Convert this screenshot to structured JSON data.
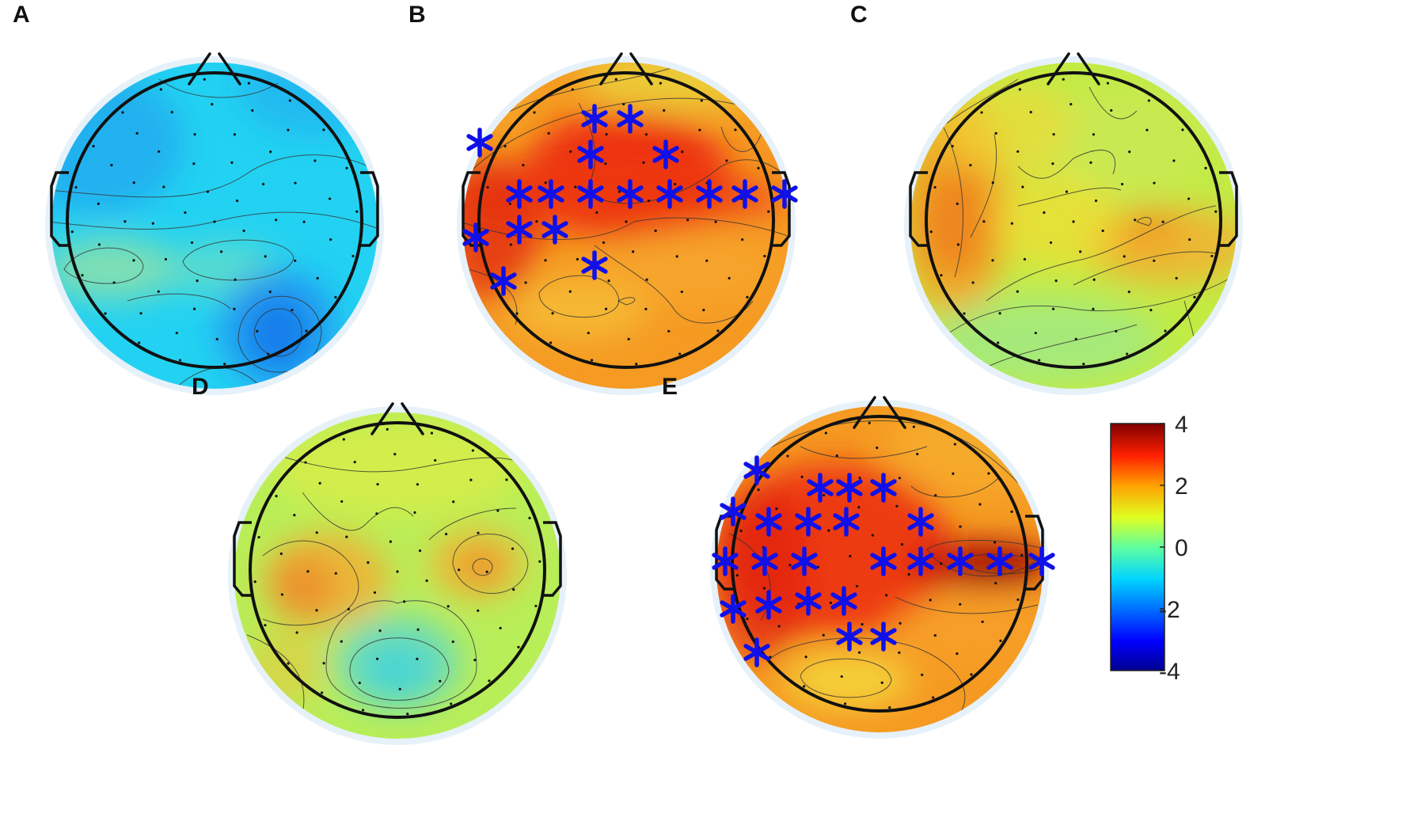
{
  "panels": [
    {
      "letter": "A",
      "center": [
        271,
        280
      ],
      "base": "#23d2f2",
      "blobs": [
        {
          "x": -150,
          "y": -100,
          "rx": 110,
          "ry": 90,
          "color": "#1fa6ee",
          "op": 0.75
        },
        {
          "x": 130,
          "y": -170,
          "rx": 100,
          "ry": 60,
          "color": "#1fa6ee",
          "op": 0.55
        },
        {
          "x": -130,
          "y": 60,
          "rx": 85,
          "ry": 40,
          "color": "#8fe0a8",
          "op": 0.85
        },
        {
          "x": 10,
          "y": 60,
          "rx": 70,
          "ry": 35,
          "color": "#6de0c0",
          "op": 0.7
        },
        {
          "x": 80,
          "y": 135,
          "rx": 75,
          "ry": 75,
          "color": "#1f8ff0",
          "op": 0.8
        },
        {
          "x": 80,
          "y": 140,
          "rx": 35,
          "ry": 45,
          "color": "#1570e8",
          "op": 0.8
        }
      ],
      "contours": [
        "M-210,-40 C-100,-30 -20,-20 40,-60 C90,-95 170,-90 210,-60",
        "M-210,0 C-120,10 -60,15 0,0 C60,-15 130,-20 210,10",
        "M-190,60 C-170,25 -100,25 -90,55 C-90,85 -170,85 -190,60 Z",
        "M-40,50 C-20,15 90,15 100,45 C95,80 -30,85 -40,50 Z",
        "M30,150 C30,80 130,75 135,140 C130,205 40,205 30,150 Z",
        "M50,140 C55,100 110,100 110,140 C110,180 55,180 50,140 Z",
        "M-70,-180 C-30,-150 40,-150 80,-175",
        "M-110,100 C-60,85 0,90 20,110",
        "M-60,220 C-20,180 20,170 60,210"
      ],
      "stars": []
    },
    {
      "letter": "B",
      "center": [
        791,
        280
      ],
      "base": "#f59a22",
      "blobs": [
        {
          "x": 0,
          "y": -60,
          "rx": 130,
          "ry": 80,
          "color": "#ec2010",
          "op": 0.85
        },
        {
          "x": -20,
          "y": -30,
          "rx": 220,
          "ry": 45,
          "color": "#ee3a12",
          "op": 0.7
        },
        {
          "x": -170,
          "y": 10,
          "rx": 60,
          "ry": 90,
          "color": "#e42a10",
          "op": 0.8
        },
        {
          "x": -60,
          "y": 110,
          "rx": 90,
          "ry": 40,
          "color": "#f5c238",
          "op": 0.75
        },
        {
          "x": 60,
          "y": -180,
          "rx": 120,
          "ry": 40,
          "color": "#e8e040",
          "op": 0.7
        },
        {
          "x": -180,
          "y": -170,
          "rx": 60,
          "ry": 40,
          "color": "#f5c238",
          "op": 0.5
        },
        {
          "x": 80,
          "y": 60,
          "rx": 110,
          "ry": 50,
          "color": "#f7a82e",
          "op": 0.7
        }
      ],
      "contours": [
        "M-200,-60 C-140,-120 -60,-140 0,-150 C60,-160 120,-160 200,-130",
        "M-180,-120 C-110,-170 -20,-170 60,-195",
        "M-60,-150 C-40,-110 -30,-80 -50,-40 C-20,-10 60,-20 120,-70 C160,-90 190,-70 210,-50",
        "M-210,0 C-120,30 -40,30 10,0 C60,-10 140,-5 210,20",
        "M-110,90 C-90,60 -20,60 -10,95 C0,130 -110,130 -110,90 Z",
        "M-40,30 C0,60 40,80 60,110 C80,140 140,130 160,100",
        "M-10,100 C10,90 20,100 0,105 Z",
        "M120,-120 C130,-80 160,-80 170,-110",
        "M-200,60 C-160,70 -130,90 -140,130"
      ],
      "stars": [
        [
          -40,
          -130
        ],
        [
          5,
          -130
        ],
        [
          -45,
          -85
        ],
        [
          50,
          -85
        ],
        [
          -185,
          -100
        ],
        [
          -135,
          -35
        ],
        [
          -95,
          -35
        ],
        [
          -45,
          -35
        ],
        [
          5,
          -35
        ],
        [
          55,
          -35
        ],
        [
          105,
          -35
        ],
        [
          150,
          -35
        ],
        [
          200,
          -35
        ],
        [
          -190,
          20
        ],
        [
          -135,
          10
        ],
        [
          -90,
          10
        ],
        [
          -40,
          55
        ],
        [
          -155,
          75
        ]
      ]
    },
    {
      "letter": "C",
      "center": [
        1356,
        280
      ],
      "base": "#c2ec44",
      "blobs": [
        {
          "x": -150,
          "y": -20,
          "rx": 70,
          "ry": 140,
          "color": "#f6a424",
          "op": 0.85
        },
        {
          "x": -150,
          "y": 0,
          "rx": 45,
          "ry": 70,
          "color": "#ef6a1c",
          "op": 0.6
        },
        {
          "x": 120,
          "y": 30,
          "rx": 110,
          "ry": 50,
          "color": "#f6ad30",
          "op": 0.8
        },
        {
          "x": 90,
          "y": 10,
          "rx": 50,
          "ry": 25,
          "color": "#f28e20",
          "op": 0.6
        },
        {
          "x": -40,
          "y": 150,
          "rx": 150,
          "ry": 55,
          "color": "#9ce88c",
          "op": 0.75
        },
        {
          "x": 60,
          "y": -100,
          "rx": 110,
          "ry": 70,
          "color": "#cde85a",
          "op": 0.6
        },
        {
          "x": -20,
          "y": 0,
          "rx": 80,
          "ry": 60,
          "color": "#f2dd35",
          "op": 0.7
        },
        {
          "x": -80,
          "y": -120,
          "rx": 80,
          "ry": 60,
          "color": "#f3d735",
          "op": 0.6
        }
      ],
      "contours": [
        "M-200,-90 C-150,-140 -100,-160 -70,-180",
        "M-170,-130 C-140,-80 -130,0 -150,70",
        "M-100,-110 C-90,-60 -110,-20 -130,20",
        "M-70,-70 C-40,-40 -20,-60 0,-80 C40,-100 60,-90 50,-60",
        "M-70,-20 C-20,-30 30,-50 60,-40",
        "M-110,100 C-70,70 -40,60 0,50 C60,40 120,-10 180,-20",
        "M0,80 C40,60 120,30 180,40",
        "M-170,150 C-120,110 -60,100 0,110 C60,120 150,100 200,70",
        "M-140,200 C-80,160 20,150 80,130",
        "M140,100 C150,140 160,160 150,190",
        "M80,0 C90,-10 105,-5 95,5 Z",
        "M20,-170 C40,-130 60,-120 80,-140"
      ],
      "stars": []
    },
    {
      "letter": "D",
      "center": [
        502,
        722
      ],
      "base": "#b8ee58",
      "blobs": [
        {
          "x": -90,
          "y": 10,
          "rx": 80,
          "ry": 60,
          "color": "#f6aa30",
          "op": 0.8
        },
        {
          "x": -120,
          "y": 20,
          "rx": 40,
          "ry": 40,
          "color": "#ef7a22",
          "op": 0.6
        },
        {
          "x": 100,
          "y": -10,
          "rx": 60,
          "ry": 45,
          "color": "#f6b030",
          "op": 0.8
        },
        {
          "x": 105,
          "y": -5,
          "rx": 25,
          "ry": 18,
          "color": "#ea6a1c",
          "op": 0.7
        },
        {
          "x": 0,
          "y": 115,
          "rx": 80,
          "ry": 60,
          "color": "#5fd8cc",
          "op": 0.8
        },
        {
          "x": 0,
          "y": 125,
          "rx": 45,
          "ry": 35,
          "color": "#38d2e0",
          "op": 0.7
        },
        {
          "x": 0,
          "y": -130,
          "rx": 160,
          "ry": 60,
          "color": "#e2ec42",
          "op": 0.65
        },
        {
          "x": -140,
          "y": 120,
          "rx": 50,
          "ry": 50,
          "color": "#f0c038",
          "op": 0.5
        }
      ],
      "contours": [
        "M-170,-20 C-120,-60 -60,-30 -50,10 C-40,60 -120,80 -170,60",
        "M70,-10 C70,-60 160,-60 165,-10 C160,40 80,40 70,-10 Z",
        "M95,-5 C95,-20 120,-20 120,-5 C118,8 98,8 95,-5 Z",
        "M-60,125 C-60,70 60,70 65,125 C60,175 -60,175 -60,125 Z",
        "M-90,120 C-90,40 -20,30 0,40 C30,30 100,40 100,120 C100,190 -90,190 -90,120",
        "M-160,-150 C-100,-130 -40,-120 20,-130 C80,-140 140,-160 190,-120",
        "M-120,-100 C-90,-60 -60,-40 -40,-60 C-20,-80 0,-90 20,-70",
        "M40,-40 C60,-60 100,-80 150,-80",
        "M-190,80 C-140,100 -110,130 -120,180"
      ],
      "stars": []
    },
    {
      "letter": "E",
      "center": [
        1111,
        714
      ],
      "base": "#f59a22",
      "blobs": [
        {
          "x": -60,
          "y": -20,
          "rx": 150,
          "ry": 110,
          "color": "#ec2a10",
          "op": 0.85
        },
        {
          "x": -150,
          "y": 10,
          "rx": 60,
          "ry": 110,
          "color": "#e02010",
          "op": 0.7
        },
        {
          "x": 130,
          "y": 0,
          "rx": 90,
          "ry": 30,
          "color": "#b80e08",
          "op": 0.85
        },
        {
          "x": 150,
          "y": 0,
          "rx": 55,
          "ry": 18,
          "color": "#8e0404",
          "op": 0.8
        },
        {
          "x": -40,
          "y": 145,
          "rx": 80,
          "ry": 35,
          "color": "#f4da3c",
          "op": 0.85
        },
        {
          "x": 120,
          "y": -150,
          "rx": 110,
          "ry": 60,
          "color": "#f7b030",
          "op": 0.7
        },
        {
          "x": 120,
          "y": 80,
          "rx": 100,
          "ry": 45,
          "color": "#f7a02a",
          "op": 0.7
        }
      ],
      "contours": [
        "M-180,-120 C-120,-170 -40,-190 40,-180 C110,-170 170,-120 210,-60",
        "M-100,-150 C-60,-130 0,-130 60,-150",
        "M60,-20 C90,-40 180,-30 210,-20 C180,25 90,25 60,-20",
        "M100,-5 C120,-20 190,-15 210,0 C190,15 120,15 100,-5",
        "M-100,140 C-90,110 10,110 15,145 C10,175 -90,175 -100,140 Z",
        "M-140,120 C-110,90 0,80 60,110 C100,130 120,160 100,190",
        "M20,40 C60,60 120,70 200,50",
        "M-190,-40 C-150,-20 -120,20 -150,70",
        "M40,-100 C60,-80 120,-80 150,-110"
      ],
      "stars": [
        [
          -75,
          -98
        ],
        [
          -38,
          -98
        ],
        [
          5,
          -98
        ],
        [
          -155,
          -120
        ],
        [
          -185,
          -68
        ],
        [
          -140,
          -55
        ],
        [
          -90,
          -55
        ],
        [
          -42,
          -55
        ],
        [
          52,
          -55
        ],
        [
          -195,
          -5
        ],
        [
          -145,
          -5
        ],
        [
          -95,
          -5
        ],
        [
          5,
          -5
        ],
        [
          52,
          -5
        ],
        [
          102,
          -5
        ],
        [
          152,
          -5
        ],
        [
          205,
          -5
        ],
        [
          -185,
          55
        ],
        [
          -140,
          50
        ],
        [
          -90,
          45
        ],
        [
          -45,
          45
        ],
        [
          -38,
          90
        ],
        [
          5,
          90
        ],
        [
          -155,
          110
        ]
      ]
    }
  ],
  "colorbar": {
    "colormap": "jet",
    "ticks": [
      "4",
      "2",
      "0",
      "-2",
      "-4"
    ],
    "range": [
      -4,
      4
    ]
  },
  "colors": {
    "star": "#1010e8",
    "outline": "#111111",
    "contour": "#333333",
    "halo": "#e6f1fa"
  }
}
